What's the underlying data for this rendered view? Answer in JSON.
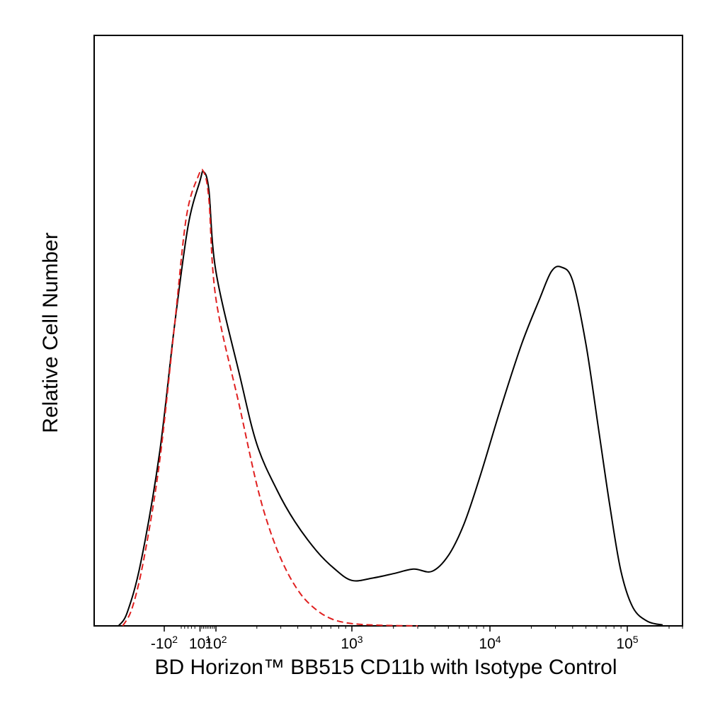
{
  "chart_data": {
    "type": "line",
    "title": "",
    "xlabel": "BD Horizon™ BB515 CD11b with Isotype Control",
    "ylabel": "Relative Cell Number",
    "x_scale": "biexponential",
    "x_tick_labels": [
      {
        "label_base": "-10",
        "label_exp": "2",
        "value": -100
      },
      {
        "label_base": "10",
        "label_exp": "1",
        "value": 10
      },
      {
        "label_base": "10",
        "label_exp": "2",
        "value": 100
      },
      {
        "label_base": "10",
        "label_exp": "3",
        "value": 1000
      },
      {
        "label_base": "10",
        "label_exp": "4",
        "value": 10000
      },
      {
        "label_base": "10",
        "label_exp": "5",
        "value": 100000
      }
    ],
    "xlim": [
      -330,
      250000
    ],
    "ylim": [
      0,
      1.3
    ],
    "grid": false,
    "legend": "none",
    "series": [
      {
        "color": "#000000",
        "style": "solid",
        "points": [
          [
            -250,
            0
          ],
          [
            -210,
            0.03
          ],
          [
            -160,
            0.14
          ],
          [
            -110,
            0.38
          ],
          [
            -70,
            0.66
          ],
          [
            -30,
            0.88
          ],
          [
            10,
            0.98
          ],
          [
            30,
            1.0
          ],
          [
            60,
            0.96
          ],
          [
            100,
            0.78
          ],
          [
            150,
            0.55
          ],
          [
            200,
            0.4
          ],
          [
            280,
            0.3
          ],
          [
            380,
            0.23
          ],
          [
            550,
            0.165
          ],
          [
            750,
            0.125
          ],
          [
            1000,
            0.1
          ],
          [
            1400,
            0.105
          ],
          [
            2000,
            0.115
          ],
          [
            2800,
            0.125
          ],
          [
            3800,
            0.12
          ],
          [
            5000,
            0.155
          ],
          [
            6500,
            0.225
          ],
          [
            8500,
            0.33
          ],
          [
            12000,
            0.48
          ],
          [
            17000,
            0.62
          ],
          [
            23000,
            0.72
          ],
          [
            28000,
            0.78
          ],
          [
            33000,
            0.79
          ],
          [
            40000,
            0.76
          ],
          [
            50000,
            0.62
          ],
          [
            62000,
            0.43
          ],
          [
            75000,
            0.26
          ],
          [
            90000,
            0.12
          ],
          [
            110000,
            0.04
          ],
          [
            140000,
            0.01
          ],
          [
            180000,
            0.002
          ]
        ]
      },
      {
        "color": "#e02020",
        "style": "dashed",
        "points": [
          [
            -230,
            0
          ],
          [
            -190,
            0.04
          ],
          [
            -150,
            0.15
          ],
          [
            -110,
            0.36
          ],
          [
            -70,
            0.66
          ],
          [
            -35,
            0.9
          ],
          [
            0,
            0.99
          ],
          [
            30,
            1.0
          ],
          [
            60,
            0.94
          ],
          [
            100,
            0.72
          ],
          [
            150,
            0.48
          ],
          [
            200,
            0.31
          ],
          [
            250,
            0.21
          ],
          [
            320,
            0.13
          ],
          [
            420,
            0.07
          ],
          [
            550,
            0.035
          ],
          [
            700,
            0.016
          ],
          [
            900,
            0.007
          ],
          [
            1200,
            0.003
          ],
          [
            1800,
            0.001
          ],
          [
            3000,
            0
          ]
        ]
      }
    ]
  }
}
